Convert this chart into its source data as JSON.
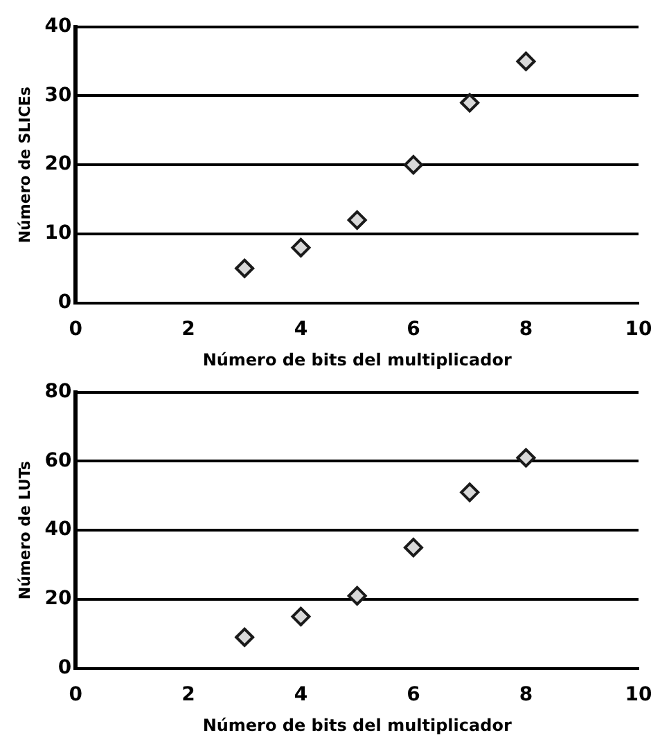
{
  "chart_data": [
    {
      "type": "scatter",
      "xlabel": "Número de bits del multiplicador",
      "ylabel": "Número de SLICEs",
      "x": [
        3,
        4,
        5,
        6,
        7,
        8
      ],
      "series": [
        {
          "color": "#1a1a1a",
          "values": [
            5,
            8,
            12,
            20,
            29,
            35
          ]
        }
      ],
      "xlim": [
        0,
        10
      ],
      "xticks": [
        0,
        2,
        4,
        6,
        8,
        10
      ],
      "ylim": [
        0,
        40
      ],
      "yticks": [
        0,
        10,
        20,
        30,
        40
      ],
      "grid": "y",
      "legend": false,
      "marker": "diamond"
    },
    {
      "type": "scatter",
      "xlabel": "Número de bits del multiplicador",
      "ylabel": "Número de LUTs",
      "x": [
        3,
        4,
        5,
        6,
        7,
        8
      ],
      "series": [
        {
          "color": "#1a1a1a",
          "values": [
            9,
            15,
            21,
            35,
            51,
            61
          ]
        }
      ],
      "xlim": [
        0,
        10
      ],
      "xticks": [
        0,
        2,
        4,
        6,
        8,
        10
      ],
      "ylim": [
        0,
        80
      ],
      "yticks": [
        0,
        20,
        40,
        60,
        80
      ],
      "grid": "y",
      "legend": false,
      "marker": "diamond"
    }
  ]
}
